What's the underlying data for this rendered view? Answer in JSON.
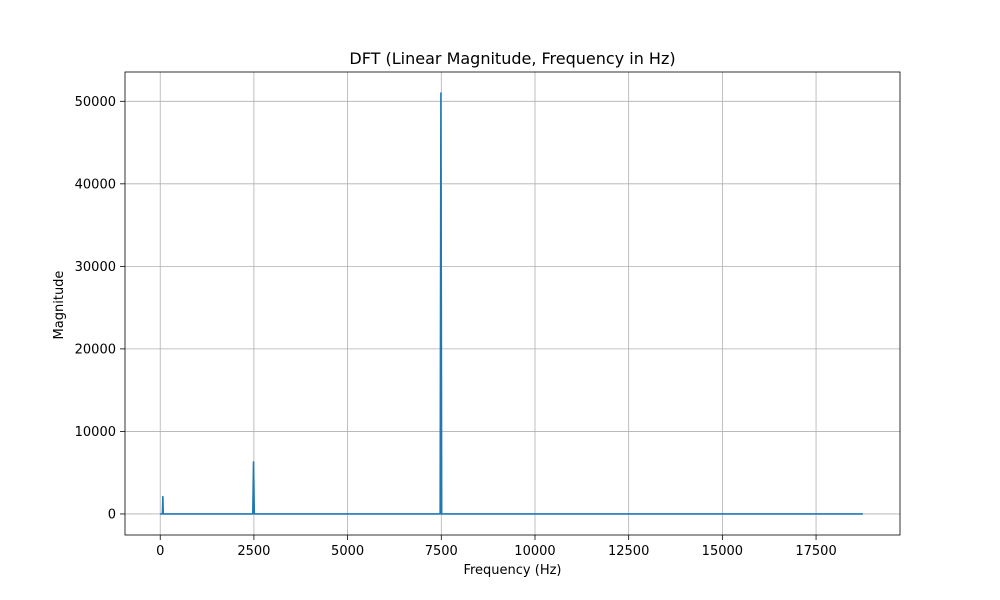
{
  "chart_data": {
    "type": "line",
    "title": "DFT (Linear Magnitude, Frequency in Hz)",
    "xlabel": "Frequency (Hz)",
    "ylabel": "Magnitude",
    "xlim": [
      -940,
      19740
    ],
    "ylim": [
      -2550,
      53550
    ],
    "xticks": [
      0,
      2500,
      5000,
      7500,
      10000,
      12500,
      15000,
      17500
    ],
    "xtick_labels": [
      "0",
      "2500",
      "5000",
      "7500",
      "10000",
      "12500",
      "15000",
      "17500"
    ],
    "yticks": [
      0,
      10000,
      20000,
      30000,
      40000,
      50000
    ],
    "ytick_labels": [
      "0",
      "10000",
      "20000",
      "30000",
      "40000",
      "50000"
    ],
    "grid": true,
    "series": [
      {
        "color": "#1f77b4",
        "points": [
          [
            0,
            0
          ],
          [
            60,
            0
          ],
          [
            70,
            2100
          ],
          [
            80,
            0
          ],
          [
            2470,
            0
          ],
          [
            2490,
            6300
          ],
          [
            2510,
            0
          ],
          [
            7470,
            0
          ],
          [
            7490,
            51000
          ],
          [
            7510,
            0
          ],
          [
            18750,
            0
          ]
        ]
      }
    ]
  }
}
